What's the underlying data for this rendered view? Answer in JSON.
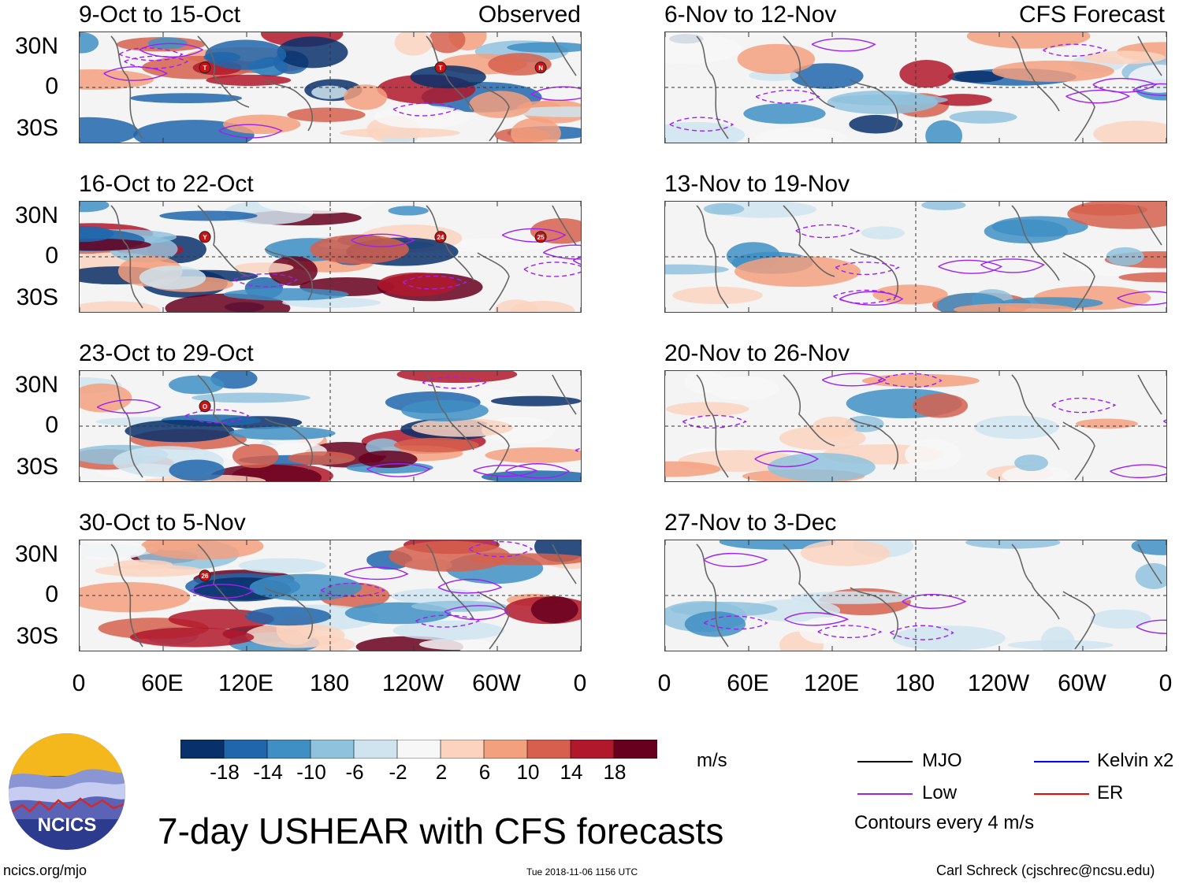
{
  "chart_data": {
    "type": "heatmap",
    "title": "7-day USHEAR with CFS forecasts",
    "variable": "USHEAR",
    "units": "m/s",
    "latitude_ticks": [
      "30N",
      "0",
      "30S"
    ],
    "longitude_ticks": [
      "0",
      "60E",
      "120E",
      "180",
      "120W",
      "60W",
      "0"
    ],
    "column_headers": {
      "left": "Observed",
      "right": "CFS Forecast"
    },
    "panels": [
      {
        "period": "9-Oct to 15-Oct",
        "kind": "observed",
        "storms": [
          "T",
          "T",
          "N"
        ]
      },
      {
        "period": "16-Oct to 22-Oct",
        "kind": "observed",
        "storms": [
          "Y",
          "24",
          "25"
        ]
      },
      {
        "period": "23-Oct to 29-Oct",
        "kind": "observed",
        "storms": [
          "O"
        ]
      },
      {
        "period": "30-Oct to 5-Nov",
        "kind": "observed",
        "storms": [
          "26"
        ]
      },
      {
        "period": "6-Nov to 12-Nov",
        "kind": "forecast",
        "storms": []
      },
      {
        "period": "13-Nov to 19-Nov",
        "kind": "forecast",
        "storms": []
      },
      {
        "period": "20-Nov to 26-Nov",
        "kind": "forecast",
        "storms": []
      },
      {
        "period": "27-Nov to 3-Dec",
        "kind": "forecast",
        "storms": []
      }
    ],
    "colorbar": {
      "labels": [
        "-18",
        "-14",
        "-10",
        "-6",
        "-2",
        "2",
        "6",
        "10",
        "14",
        "18"
      ],
      "colors": [
        "#08306b",
        "#2066ac",
        "#3f8fc4",
        "#8fc2dd",
        "#cfe4ef",
        "#f7f7f7",
        "#fbd3bf",
        "#f3a07e",
        "#d6604d",
        "#b2182b",
        "#67001f"
      ]
    },
    "legend": [
      {
        "label": "MJO",
        "color": "#000000"
      },
      {
        "label": "Kelvin x2",
        "color": "#0000ff"
      },
      {
        "label": "Low",
        "color": "#a020f0"
      },
      {
        "label": "ER",
        "color": "#ff0000"
      }
    ],
    "contour_note": "Contours every 4 m/s"
  },
  "footer": {
    "url": "ncics.org/mjo",
    "timestamp": "Tue 2018-11-06 1156 UTC",
    "author": "Carl Schreck (cjschrec@ncsu.edu)",
    "logo_text": "NCICS"
  }
}
